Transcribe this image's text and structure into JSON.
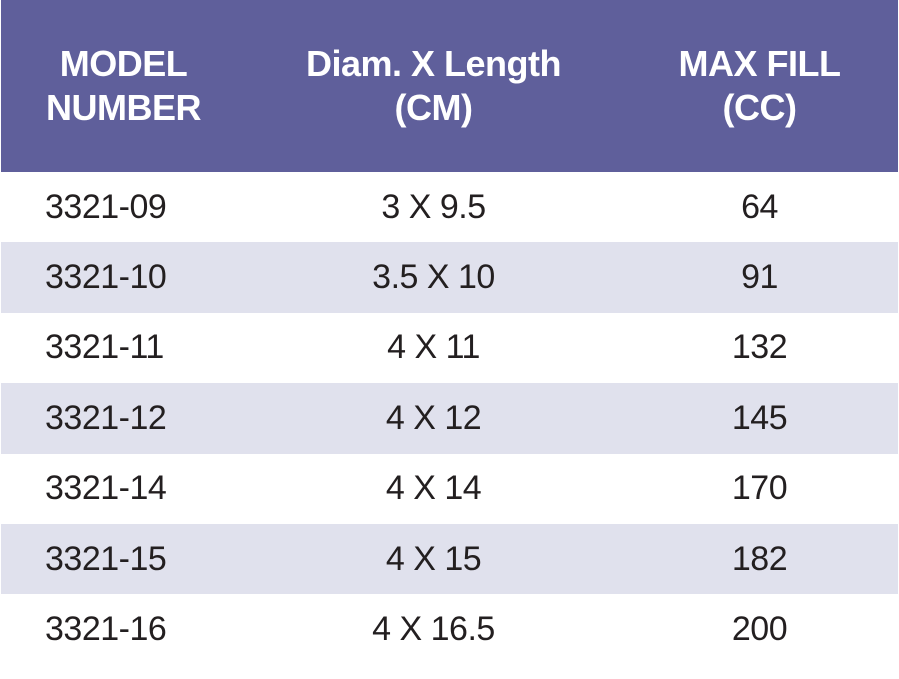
{
  "headers": {
    "model": "MODEL\nNUMBER",
    "size": "Diam. X Length\n(CM)",
    "fill": "MAX FILL\n(CC)"
  },
  "rows": [
    {
      "model": "3321-09",
      "size": "3 X 9.5",
      "fill": "64"
    },
    {
      "model": "3321-10",
      "size": "3.5 X 10",
      "fill": "91"
    },
    {
      "model": "3321-11",
      "size": "4 X 11",
      "fill": "132"
    },
    {
      "model": "3321-12",
      "size": "4 X 12",
      "fill": "145"
    },
    {
      "model": "3321-14",
      "size": "4 X 14",
      "fill": "170"
    },
    {
      "model": "3321-15",
      "size": "4 X 15",
      "fill": "182"
    },
    {
      "model": "3321-16",
      "size": "4 X 16.5",
      "fill": "200"
    }
  ],
  "colors": {
    "header_bg": "#5f5f9b",
    "stripe_bg": "#e0e1ed",
    "text": "#231f20"
  }
}
